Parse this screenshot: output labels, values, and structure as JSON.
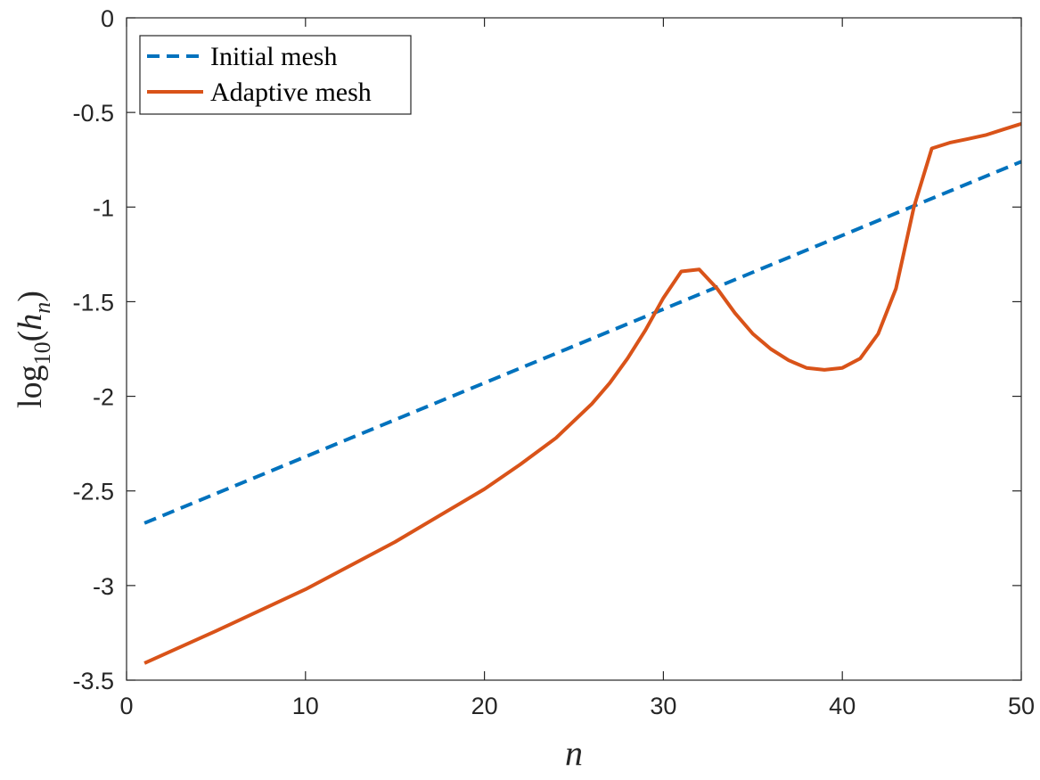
{
  "chart_data": {
    "type": "line",
    "title": "",
    "xlabel": "n",
    "ylabel_parts": {
      "fn": "log",
      "sub": "10",
      "arg_open": "(",
      "arg": "h",
      "arg_sub": "n",
      "arg_close": ")"
    },
    "xlim": [
      0,
      50
    ],
    "ylim": [
      -3.5,
      0
    ],
    "xticks": [
      0,
      10,
      20,
      30,
      40,
      50
    ],
    "yticks": [
      0,
      -0.5,
      -1,
      -1.5,
      -2,
      -2.5,
      -3,
      -3.5
    ],
    "xtick_labels": [
      "0",
      "10",
      "20",
      "30",
      "40",
      "50"
    ],
    "ytick_labels": [
      "0",
      "-0.5",
      "-1",
      "-1.5",
      "-2",
      "-2.5",
      "-3",
      "-3.5"
    ],
    "grid": false,
    "legend_position": "top-left",
    "series": [
      {
        "name": "Initial mesh",
        "style": "dashed",
        "color": "#0072BD",
        "x": [
          1,
          50
        ],
        "y": [
          -2.67,
          -0.76
        ]
      },
      {
        "name": "Adaptive mesh",
        "style": "solid",
        "color": "#D95319",
        "x": [
          1,
          5,
          10,
          15,
          20,
          22,
          24,
          25,
          26,
          27,
          28,
          29,
          30,
          31,
          32,
          33,
          34,
          35,
          36,
          37,
          38,
          39,
          40,
          41,
          42,
          43,
          44,
          45,
          46,
          47,
          48,
          49,
          50
        ],
        "y": [
          -3.41,
          -3.24,
          -3.02,
          -2.77,
          -2.49,
          -2.36,
          -2.22,
          -2.13,
          -2.04,
          -1.93,
          -1.8,
          -1.65,
          -1.48,
          -1.34,
          -1.33,
          -1.43,
          -1.56,
          -1.67,
          -1.75,
          -1.81,
          -1.85,
          -1.86,
          -1.85,
          -1.8,
          -1.67,
          -1.43,
          -1.0,
          -0.69,
          -0.66,
          -0.64,
          -0.62,
          -0.59,
          -0.56
        ]
      }
    ]
  }
}
